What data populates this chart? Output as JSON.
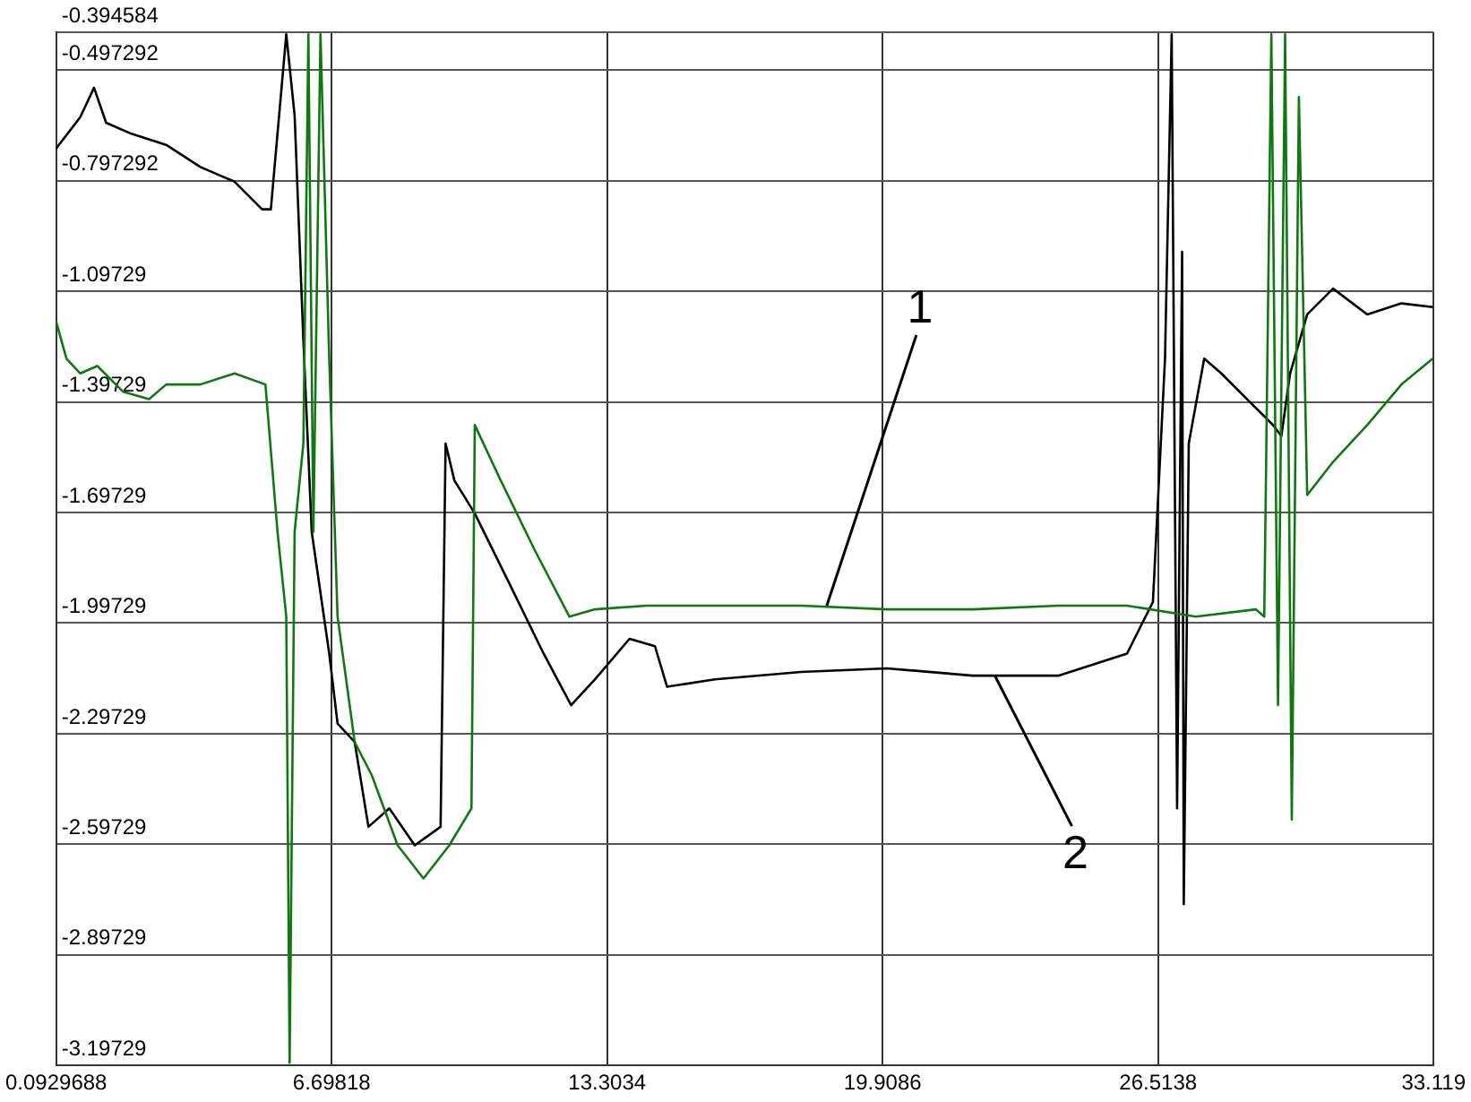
{
  "chart_data": {
    "type": "line",
    "xlim": [
      0.0929688,
      33.119
    ],
    "xticks": [
      0.0929688,
      6.69818,
      13.3034,
      19.9086,
      26.5138,
      33.119
    ],
    "ylim": [
      -3.19729,
      -0.394584
    ],
    "yticks": [
      -0.394584,
      -0.497292,
      -0.797292,
      -1.09729,
      -1.39729,
      -1.69729,
      -1.99729,
      -2.29729,
      -2.59729,
      -2.89729,
      -3.19729
    ],
    "grid": true,
    "legend": false,
    "marker": "none",
    "line_style": "solid",
    "annotations": [
      {
        "text": "1",
        "x": 18.57,
        "y": -1.95
      },
      {
        "text": "2",
        "x": 22.6,
        "y": -2.14
      }
    ],
    "series": [
      {
        "color": "#117711",
        "x": [
          0.093,
          0.34,
          0.67,
          1.08,
          1.7,
          2.32,
          2.73,
          3.55,
          4.37,
          5.11,
          5.4,
          5.61,
          5.69,
          5.81,
          6.02,
          6.14,
          6.26,
          6.43,
          6.64,
          6.84,
          7.25,
          7.66,
          8.28,
          8.9,
          9.52,
          10.05,
          10.13,
          10.75,
          11.57,
          12.4,
          13.01,
          14.25,
          15.89,
          17.95,
          20.01,
          22.07,
          24.12,
          25.77,
          27.42,
          28.86,
          29.06,
          29.23,
          29.39,
          29.56,
          29.72,
          29.89,
          30.09,
          30.71,
          31.53,
          32.35,
          33.1
        ],
        "values": [
          -1.18,
          -1.28,
          -1.32,
          -1.3,
          -1.37,
          -1.39,
          -1.35,
          -1.35,
          -1.32,
          -1.35,
          -1.75,
          -1.98,
          -3.19,
          -1.75,
          -1.51,
          -0.4,
          -1.75,
          -0.4,
          -1.28,
          -1.98,
          -2.32,
          -2.41,
          -2.6,
          -2.69,
          -2.6,
          -2.5,
          -1.46,
          -1.61,
          -1.8,
          -1.98,
          -1.96,
          -1.95,
          -1.95,
          -1.95,
          -1.96,
          -1.96,
          -1.95,
          -1.95,
          -1.98,
          -1.96,
          -1.98,
          -0.4,
          -2.22,
          -0.4,
          -2.53,
          -0.57,
          -1.65,
          -1.56,
          -1.46,
          -1.35,
          -1.28
        ]
      },
      {
        "color": "#000000",
        "x": [
          0.093,
          0.67,
          1.0,
          1.29,
          1.9,
          2.73,
          3.55,
          4.37,
          5.03,
          5.24,
          5.61,
          5.81,
          6.02,
          6.22,
          6.64,
          6.84,
          7.25,
          7.58,
          8.08,
          8.69,
          9.31,
          9.43,
          9.64,
          10.13,
          10.96,
          11.78,
          12.44,
          13.01,
          13.84,
          14.45,
          14.74,
          15.89,
          17.95,
          20.01,
          22.07,
          24.12,
          25.77,
          26.39,
          26.68,
          26.84,
          26.97,
          27.09,
          27.13,
          27.25,
          27.62,
          28.03,
          28.65,
          29.27,
          29.47,
          29.68,
          30.09,
          30.71,
          31.53,
          32.35,
          33.1
        ],
        "values": [
          -0.71,
          -0.625,
          -0.545,
          -0.64,
          -0.67,
          -0.7,
          -0.76,
          -0.8,
          -0.875,
          -0.875,
          -0.4,
          -0.62,
          -1.23,
          -1.75,
          -2.08,
          -2.27,
          -2.32,
          -2.55,
          -2.5,
          -2.6,
          -2.55,
          -1.51,
          -1.61,
          -1.7,
          -1.89,
          -2.08,
          -2.22,
          -2.15,
          -2.04,
          -2.06,
          -2.17,
          -2.15,
          -2.13,
          -2.12,
          -2.14,
          -2.14,
          -2.08,
          -1.94,
          -1.28,
          -0.4,
          -2.5,
          -0.99,
          -2.76,
          -1.51,
          -1.28,
          -1.32,
          -1.39,
          -1.46,
          -1.49,
          -1.32,
          -1.16,
          -1.09,
          -1.16,
          -1.13,
          -1.14
        ]
      }
    ]
  }
}
